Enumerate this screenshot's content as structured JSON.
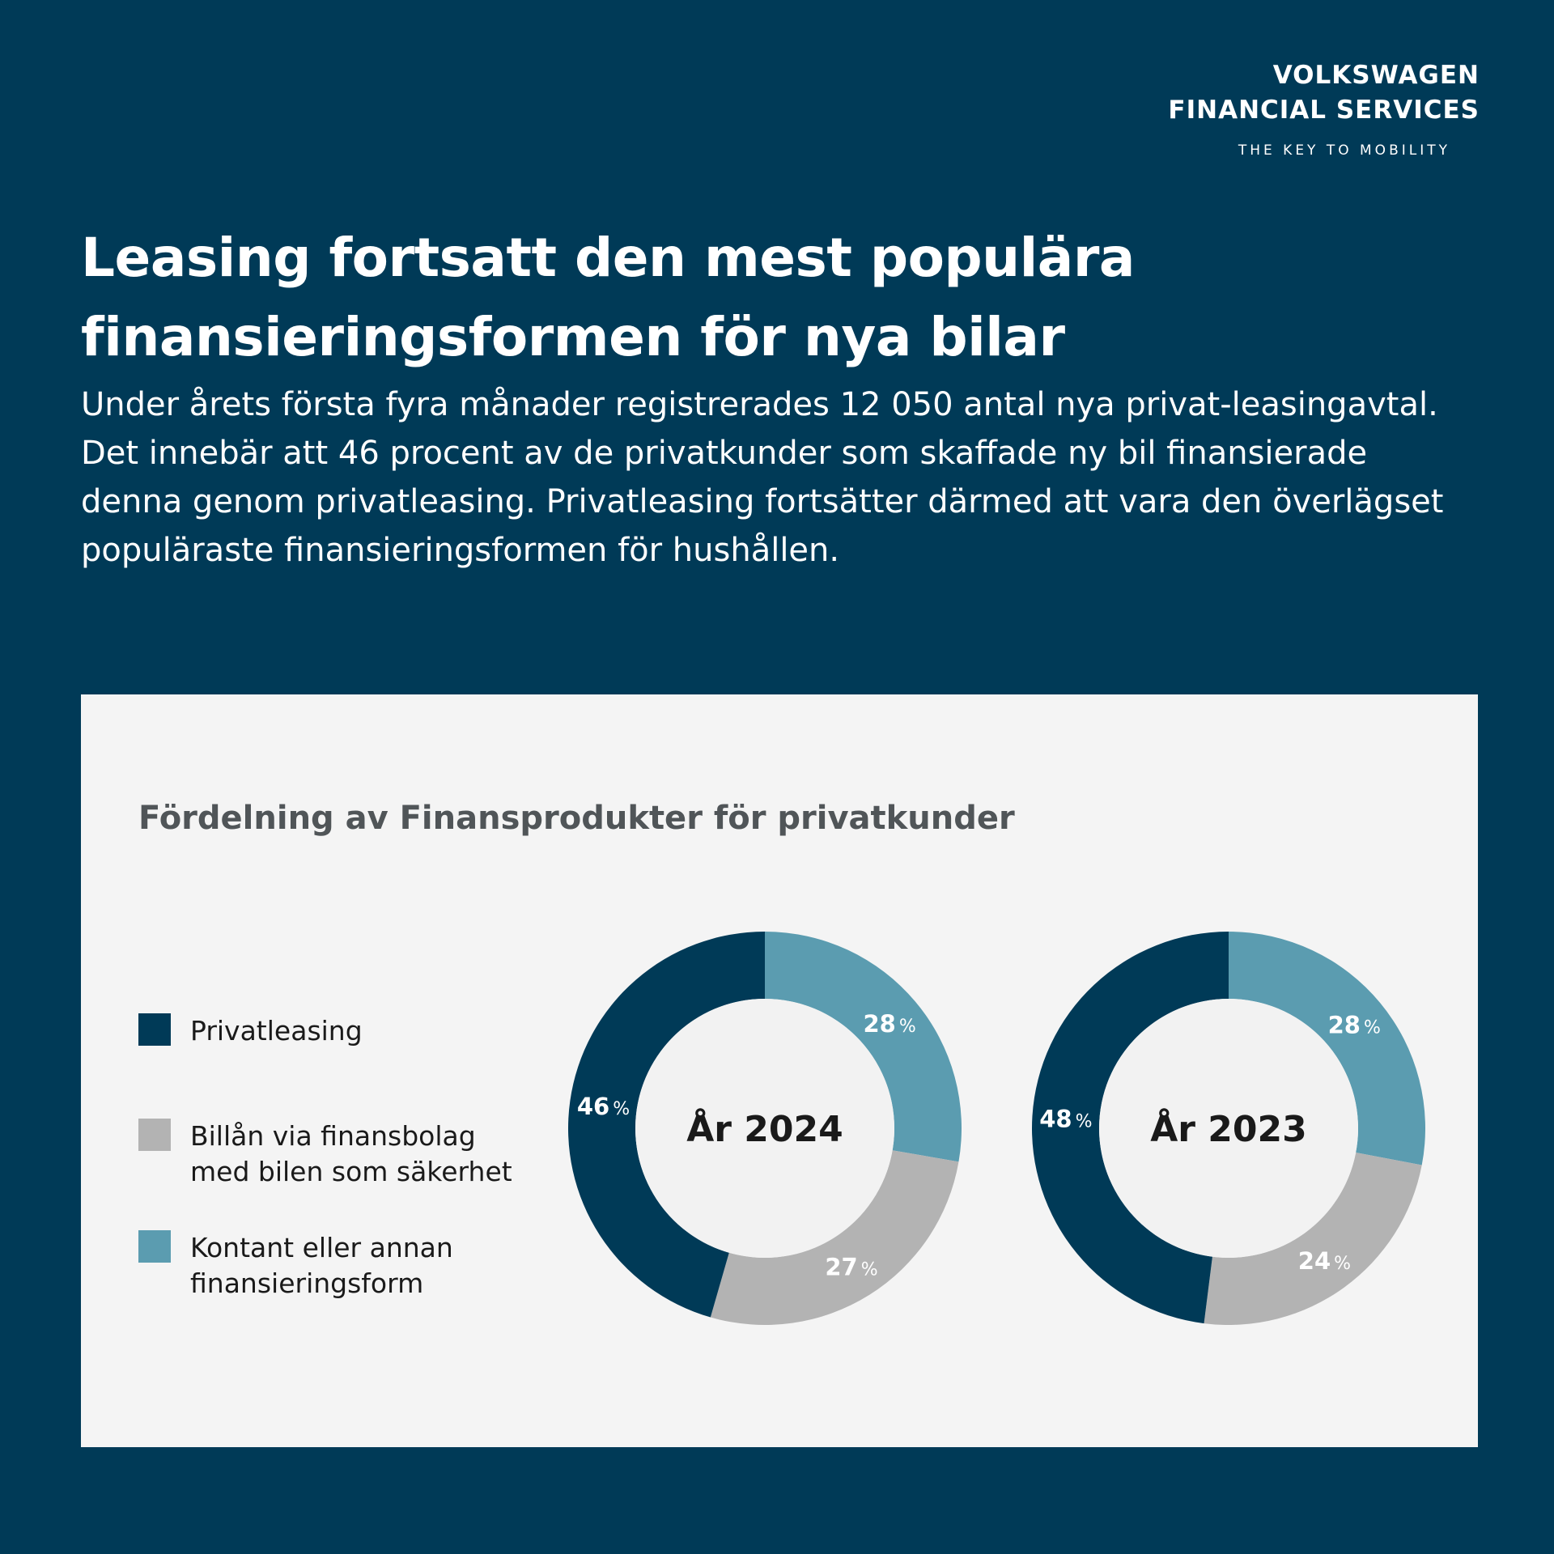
{
  "brand": {
    "line1": "VOLKSWAGEN",
    "line2": "FINANCIAL SERVICES",
    "tagline": "THE KEY TO MOBILITY"
  },
  "headline": "Leasing fortsatt den mest populära finansieringsformen för nya bilar",
  "lead": "Under årets första fyra månader registrerades 12 050 antal nya privat-leasingavtal. Det innebär att 46 procent av de privatkunder som skaffade ny bil finansierade denna genom privatleasing. Privatleasing fortsätter därmed att vara den överlägset populäraste finansieringsformen för hushållen.",
  "colors": {
    "background": "#003a57",
    "panel": "#f4f4f4",
    "privatleasing": "#003a57",
    "billan": "#b3b3b3",
    "kontant": "#5b9cb0"
  },
  "chart_data": [
    {
      "type": "pie",
      "title": "Fördelning av Finansprodukter för privatkunder",
      "center_label": "År 2024",
      "categories": [
        "Privatleasing",
        "Billån via finansbolag\nmed bilen som säkerhet",
        "Kontant eller annan\nfinansieringsform"
      ],
      "values": [
        46,
        27,
        28
      ],
      "value_suffix": "%",
      "legend": "left"
    },
    {
      "type": "pie",
      "title": "Fördelning av Finansprodukter för privatkunder",
      "center_label": "År 2023",
      "categories": [
        "Privatleasing",
        "Billån via finansbolag\nmed bilen som säkerhet",
        "Kontant eller annan\nfinansieringsform"
      ],
      "values": [
        48,
        24,
        28
      ],
      "value_suffix": "%",
      "legend": "left"
    }
  ]
}
